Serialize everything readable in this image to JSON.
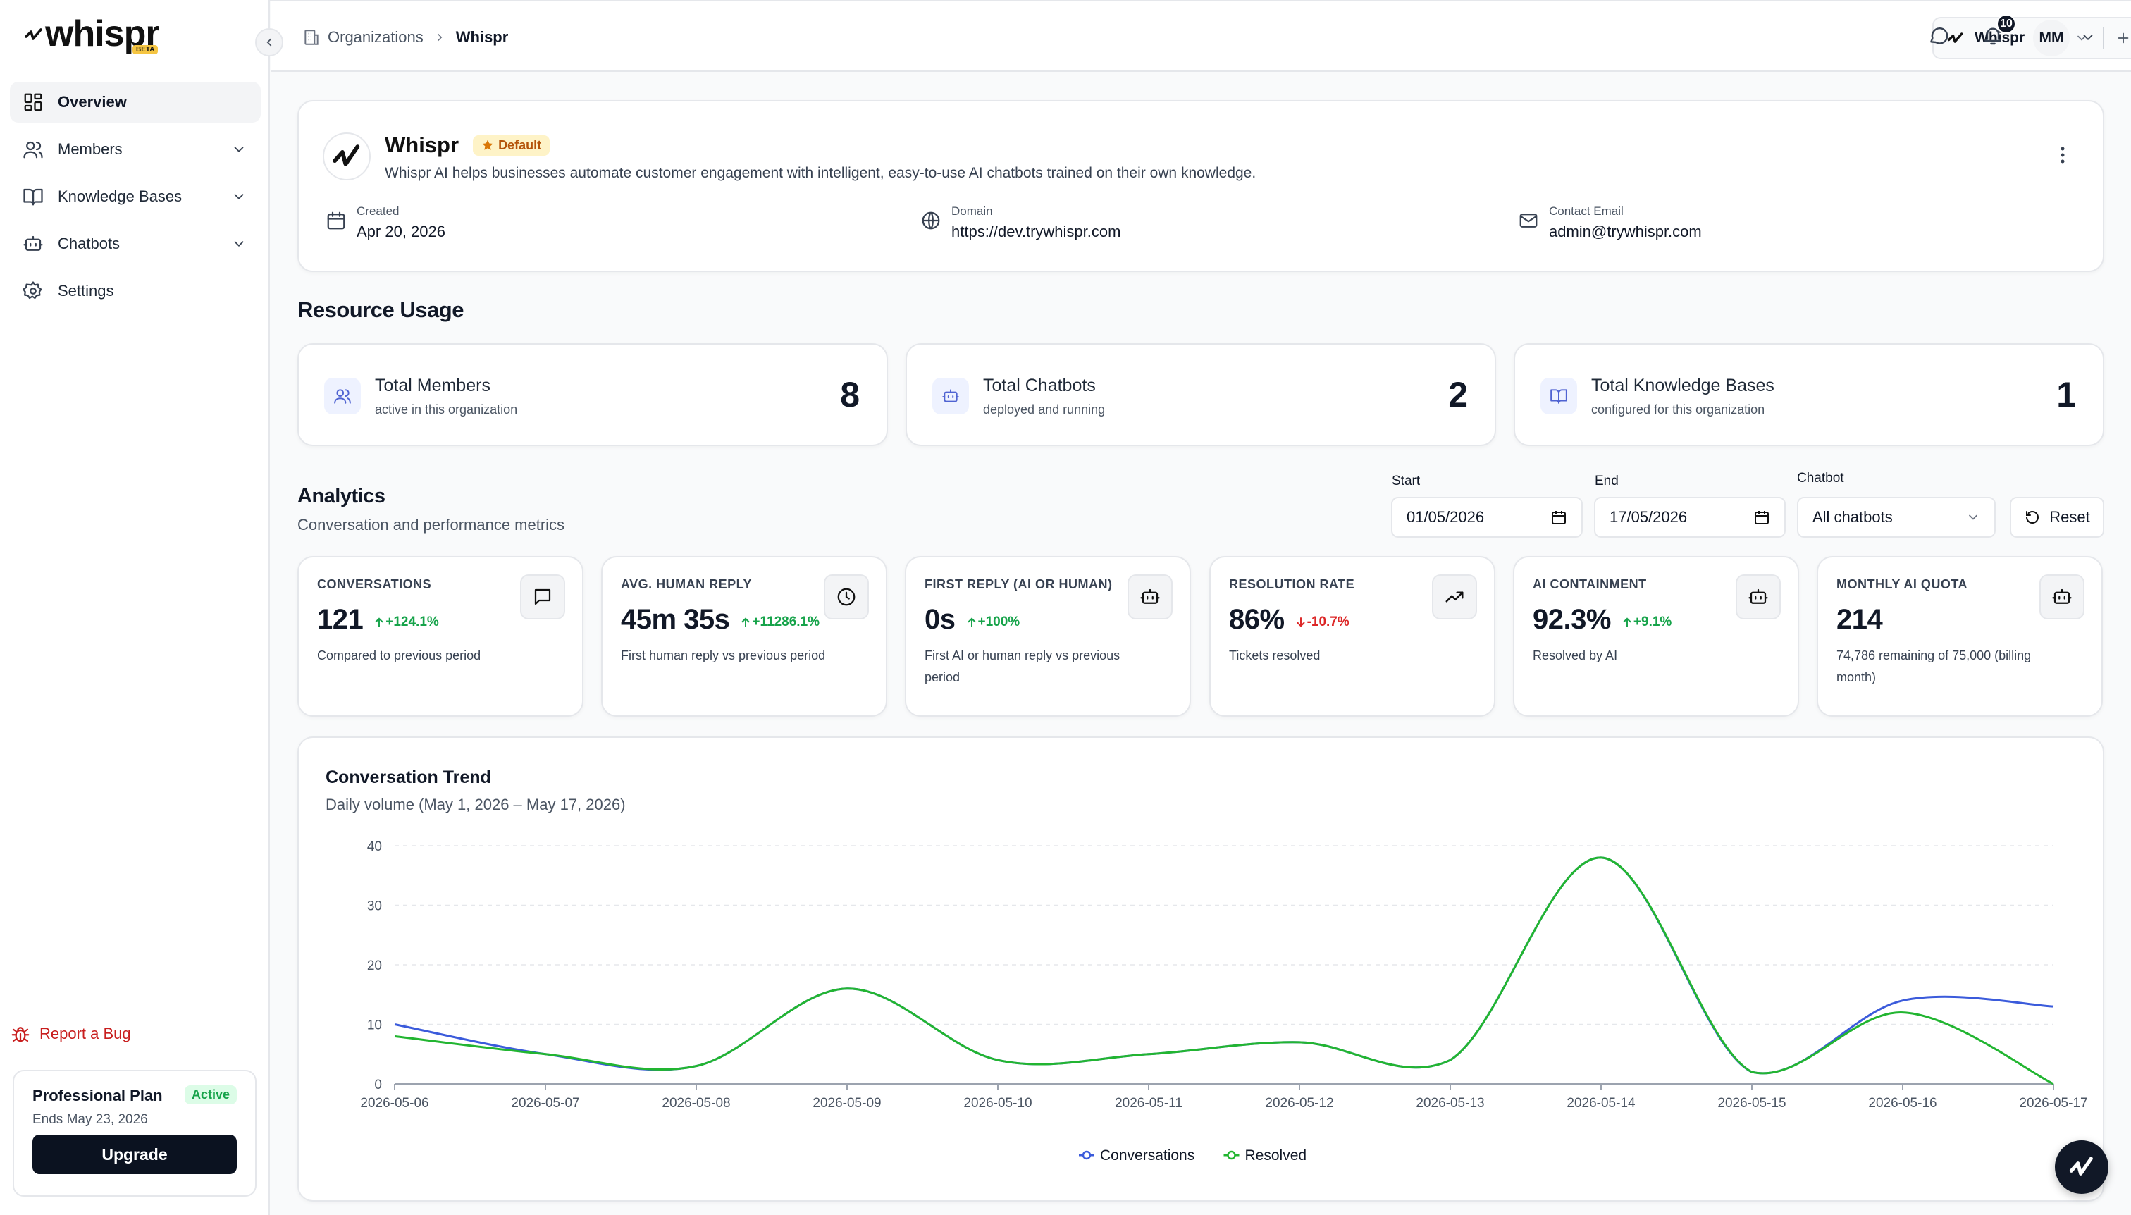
{
  "app": {
    "logo_text": "whispr",
    "logo_badge": "BETA"
  },
  "sidebar": {
    "items": [
      {
        "label": "Overview",
        "icon": "grid-icon",
        "active": true
      },
      {
        "label": "Members",
        "icon": "users-icon"
      },
      {
        "label": "Knowledge Bases",
        "icon": "book-icon"
      },
      {
        "label": "Chatbots",
        "icon": "bot-icon"
      },
      {
        "label": "Settings",
        "icon": "gear-icon"
      }
    ],
    "report_bug": "Report a Bug",
    "plan": {
      "name": "Professional Plan",
      "status": "Active",
      "ends": "Ends May 23, 2026",
      "upgrade": "Upgrade"
    }
  },
  "topbar": {
    "breadcrumb": [
      "Organizations",
      "Whispr"
    ],
    "org_switcher": "Whispr",
    "notifications_count": "10",
    "avatar": "MM"
  },
  "org": {
    "name": "Whispr",
    "badge": "Default",
    "description": "Whispr AI helps businesses automate customer engagement with intelligent, easy-to-use AI chatbots trained on their own knowledge.",
    "meta": [
      {
        "label": "Created",
        "value": "Apr 20, 2026"
      },
      {
        "label": "Domain",
        "value": "https://dev.trywhispr.com"
      },
      {
        "label": "Contact Email",
        "value": "admin@trywhispr.com"
      }
    ]
  },
  "resource_usage": {
    "title": "Resource Usage",
    "cards": [
      {
        "title": "Total Members",
        "sub": "active in this organization",
        "value": "8"
      },
      {
        "title": "Total Chatbots",
        "sub": "deployed and running",
        "value": "2"
      },
      {
        "title": "Total Knowledge Bases",
        "sub": "configured for this organization",
        "value": "1"
      }
    ]
  },
  "analytics": {
    "title": "Analytics",
    "subtitle": "Conversation and performance metrics",
    "filters": {
      "start_label": "Start",
      "start": "01/05/2026",
      "end_label": "End",
      "end": "17/05/2026",
      "chatbot_label": "Chatbot",
      "chatbot": "All chatbots",
      "reset": "Reset"
    },
    "metrics": [
      {
        "label": "CONVERSATIONS",
        "value": "121",
        "delta": "+124.1%",
        "dir": "up",
        "desc": "Compared to previous period",
        "icon": "message-icon"
      },
      {
        "label": "AVG. HUMAN REPLY",
        "value": "45m 35s",
        "delta": "+11286.1%",
        "dir": "up",
        "desc": "First human reply vs previous period",
        "icon": "clock-icon"
      },
      {
        "label": "FIRST REPLY (AI OR HUMAN)",
        "value": "0s",
        "delta": "+100%",
        "dir": "up",
        "desc": "First AI or human reply vs previous period",
        "icon": "bot-icon"
      },
      {
        "label": "RESOLUTION RATE",
        "value": "86%",
        "delta": "-10.7%",
        "dir": "down",
        "desc": "Tickets resolved",
        "icon": "trend-up-icon"
      },
      {
        "label": "AI CONTAINMENT",
        "value": "92.3%",
        "delta": "+9.1%",
        "dir": "up",
        "desc": "Resolved by AI",
        "icon": "bot-icon"
      },
      {
        "label": "MONTHLY AI QUOTA",
        "value": "214",
        "delta": "",
        "dir": "",
        "desc": "74,786 remaining of 75,000 (billing month)",
        "icon": "bot-icon"
      }
    ]
  },
  "chart_data": {
    "type": "line",
    "title": "Conversation Trend",
    "subtitle": "Daily volume (May 1, 2026 – May 17, 2026)",
    "x": [
      "2026-05-06",
      "2026-05-07",
      "2026-05-08",
      "2026-05-09",
      "2026-05-10",
      "2026-05-11",
      "2026-05-12",
      "2026-05-13",
      "2026-05-14",
      "2026-05-15",
      "2026-05-16",
      "2026-05-17"
    ],
    "ylim": [
      0,
      40
    ],
    "yticks": [
      0,
      10,
      20,
      30,
      40
    ],
    "grid": true,
    "legend": "bottom-center",
    "series": [
      {
        "name": "Conversations",
        "color": "#3b5bdb",
        "values": [
          10,
          5,
          3,
          16,
          4,
          5,
          7,
          4,
          38,
          2,
          14,
          13
        ]
      },
      {
        "name": "Resolved",
        "color": "#22b531",
        "values": [
          8,
          5,
          3,
          16,
          4,
          5,
          7,
          4,
          38,
          2,
          12,
          0
        ]
      }
    ]
  }
}
